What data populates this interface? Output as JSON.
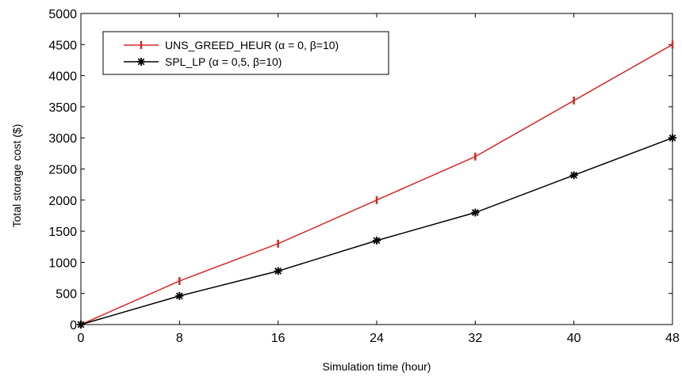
{
  "chart_data": {
    "type": "line",
    "xlabel": "Simulation time (hour)",
    "ylabel": "Total storage cost ($)",
    "x": [
      0,
      8,
      16,
      24,
      32,
      40,
      48
    ],
    "xlim": [
      0,
      48
    ],
    "ylim": [
      0,
      5000
    ],
    "xticks": [
      0,
      8,
      16,
      24,
      32,
      40,
      48
    ],
    "yticks": [
      0,
      500,
      1000,
      1500,
      2000,
      2500,
      3000,
      3500,
      4000,
      4500,
      5000
    ],
    "grid": false,
    "legend_position": "top-left",
    "series": [
      {
        "name": "UNS_GREED_HEUR (α = 0, β=10)",
        "color": "#d62728",
        "marker": "vertical-bar",
        "values": [
          0,
          700,
          1300,
          2000,
          2700,
          3600,
          4500
        ]
      },
      {
        "name": "SPL_LP (α = 0,5, β=10)",
        "color": "#000000",
        "marker": "asterisk",
        "values": [
          0,
          460,
          860,
          1350,
          1800,
          2400,
          3000
        ]
      }
    ]
  }
}
